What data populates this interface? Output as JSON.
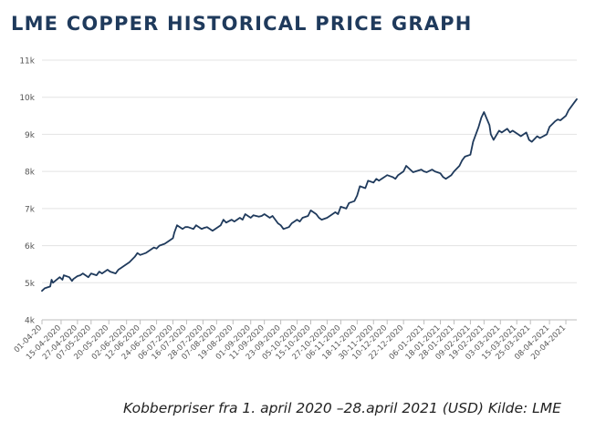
{
  "title": "LME COPPER HISTORICAL PRICE GRAPH",
  "caption": "Kobberpriser fra 1. april 2020 –28.april 2021 (USD) Kilde: LME",
  "chart_data": {
    "type": "line",
    "title": "LME COPPER HISTORICAL PRICE GRAPH",
    "xlabel": "",
    "ylabel": "",
    "ylim": [
      4000,
      11000
    ],
    "xlim": [
      "2020-04-01",
      "2021-04-28"
    ],
    "grid": true,
    "line_color": "#1f3a5c",
    "grid_color": "#e3e3e3",
    "y_ticks": [
      {
        "value": 4000,
        "label": "4k"
      },
      {
        "value": 5000,
        "label": "5k"
      },
      {
        "value": 6000,
        "label": "6k"
      },
      {
        "value": 7000,
        "label": "7k"
      },
      {
        "value": 8000,
        "label": "8k"
      },
      {
        "value": 9000,
        "label": "9k"
      },
      {
        "value": 10000,
        "label": "10k"
      },
      {
        "value": 11000,
        "label": "11k"
      }
    ],
    "x_ticks": [
      {
        "value": "2020-04-01",
        "label": "01-04-20"
      },
      {
        "value": "2020-04-15",
        "label": "15-04-2020"
      },
      {
        "value": "2020-04-27",
        "label": "27-04-2020"
      },
      {
        "value": "2020-05-07",
        "label": "07-05-2020"
      },
      {
        "value": "2020-05-20",
        "label": "20-05-2020"
      },
      {
        "value": "2020-06-02",
        "label": "02-06-2020"
      },
      {
        "value": "2020-06-12",
        "label": "12-06-2020"
      },
      {
        "value": "2020-06-24",
        "label": "24-06-2020"
      },
      {
        "value": "2020-07-06",
        "label": "06-07-2020"
      },
      {
        "value": "2020-07-16",
        "label": "16-07-2020"
      },
      {
        "value": "2020-07-28",
        "label": "28-07-2020"
      },
      {
        "value": "2020-08-07",
        "label": "07-08-2020"
      },
      {
        "value": "2020-08-19",
        "label": "19-08-2020"
      },
      {
        "value": "2020-09-01",
        "label": "01-09-2020"
      },
      {
        "value": "2020-09-11",
        "label": "11-09-2020"
      },
      {
        "value": "2020-09-23",
        "label": "23-09-2020"
      },
      {
        "value": "2020-10-05",
        "label": "05-10-2020"
      },
      {
        "value": "2020-10-15",
        "label": "15-10-2020"
      },
      {
        "value": "2020-10-27",
        "label": "27-10-2020"
      },
      {
        "value": "2020-11-06",
        "label": "06-11-2020"
      },
      {
        "value": "2020-11-18",
        "label": "18-11-2020"
      },
      {
        "value": "2020-11-30",
        "label": "30-11-2020"
      },
      {
        "value": "2020-12-10",
        "label": "10-12-2020"
      },
      {
        "value": "2020-12-22",
        "label": "22-12-2020"
      },
      {
        "value": "2021-01-06",
        "label": "06-01-2021"
      },
      {
        "value": "2021-01-18",
        "label": "18-01-2021"
      },
      {
        "value": "2021-01-28",
        "label": "28-01-2021"
      },
      {
        "value": "2021-02-09",
        "label": "09-02-2021"
      },
      {
        "value": "2021-02-19",
        "label": "19-02-2021"
      },
      {
        "value": "2021-03-03",
        "label": "03-03-2021"
      },
      {
        "value": "2021-03-15",
        "label": "15-03-2021"
      },
      {
        "value": "2021-03-25",
        "label": "25-03-2021"
      },
      {
        "value": "2021-04-08",
        "label": "08-04-2021"
      },
      {
        "value": "2021-04-20",
        "label": "20-04-2021"
      }
    ],
    "series": [
      {
        "name": "",
        "x": [
          "2020-04-01",
          "2020-04-03",
          "2020-04-07",
          "2020-04-08",
          "2020-04-09",
          "2020-04-14",
          "2020-04-16",
          "2020-04-17",
          "2020-04-21",
          "2020-04-23",
          "2020-04-24",
          "2020-04-27",
          "2020-04-29",
          "2020-05-01",
          "2020-05-05",
          "2020-05-07",
          "2020-05-11",
          "2020-05-13",
          "2020-05-15",
          "2020-05-19",
          "2020-05-21",
          "2020-05-25",
          "2020-05-27",
          "2020-05-29",
          "2020-06-02",
          "2020-06-04",
          "2020-06-08",
          "2020-06-10",
          "2020-06-12",
          "2020-06-16",
          "2020-06-18",
          "2020-06-22",
          "2020-06-24",
          "2020-06-26",
          "2020-06-30",
          "2020-07-02",
          "2020-07-06",
          "2020-07-07",
          "2020-07-09",
          "2020-07-13",
          "2020-07-15",
          "2020-07-17",
          "2020-07-21",
          "2020-07-23",
          "2020-07-27",
          "2020-07-29",
          "2020-07-31",
          "2020-08-04",
          "2020-08-06",
          "2020-08-10",
          "2020-08-12",
          "2020-08-14",
          "2020-08-18",
          "2020-08-20",
          "2020-08-24",
          "2020-08-26",
          "2020-08-28",
          "2020-09-01",
          "2020-09-03",
          "2020-09-07",
          "2020-09-09",
          "2020-09-11",
          "2020-09-15",
          "2020-09-17",
          "2020-09-21",
          "2020-09-23",
          "2020-09-25",
          "2020-09-29",
          "2020-10-01",
          "2020-10-05",
          "2020-10-07",
          "2020-10-09",
          "2020-10-13",
          "2020-10-15",
          "2020-10-19",
          "2020-10-21",
          "2020-10-23",
          "2020-10-27",
          "2020-10-29",
          "2020-11-02",
          "2020-11-04",
          "2020-11-06",
          "2020-11-10",
          "2020-11-12",
          "2020-11-16",
          "2020-11-18",
          "2020-11-20",
          "2020-11-24",
          "2020-11-26",
          "2020-11-30",
          "2020-12-02",
          "2020-12-04",
          "2020-12-08",
          "2020-12-10",
          "2020-12-14",
          "2020-12-16",
          "2020-12-18",
          "2020-12-22",
          "2020-12-24",
          "2020-12-29",
          "2021-01-04",
          "2021-01-06",
          "2021-01-08",
          "2021-01-12",
          "2021-01-14",
          "2021-01-18",
          "2021-01-20",
          "2021-01-22",
          "2021-01-26",
          "2021-01-28",
          "2021-02-01",
          "2021-02-03",
          "2021-02-05",
          "2021-02-09",
          "2021-02-11",
          "2021-02-15",
          "2021-02-17",
          "2021-02-19",
          "2021-02-23",
          "2021-02-24",
          "2021-02-26",
          "2021-03-02",
          "2021-03-04",
          "2021-03-08",
          "2021-03-10",
          "2021-03-12",
          "2021-03-16",
          "2021-03-18",
          "2021-03-22",
          "2021-03-24",
          "2021-03-26",
          "2021-03-30",
          "2021-04-01",
          "2021-04-06",
          "2021-04-08",
          "2021-04-12",
          "2021-04-14",
          "2021-04-16",
          "2021-04-20",
          "2021-04-22",
          "2021-04-26",
          "2021-04-28"
        ],
        "values": [
          4780,
          4850,
          4900,
          5080,
          5000,
          5150,
          5080,
          5200,
          5150,
          5050,
          5100,
          5180,
          5200,
          5250,
          5150,
          5250,
          5200,
          5300,
          5250,
          5350,
          5300,
          5250,
          5350,
          5400,
          5500,
          5550,
          5700,
          5800,
          5750,
          5800,
          5850,
          5950,
          5920,
          6000,
          6050,
          6100,
          6200,
          6350,
          6550,
          6450,
          6500,
          6500,
          6450,
          6550,
          6450,
          6480,
          6500,
          6400,
          6450,
          6550,
          6700,
          6620,
          6700,
          6650,
          6750,
          6700,
          6850,
          6750,
          6820,
          6780,
          6800,
          6850,
          6750,
          6800,
          6600,
          6550,
          6450,
          6500,
          6600,
          6700,
          6650,
          6750,
          6800,
          6950,
          6850,
          6750,
          6700,
          6750,
          6800,
          6900,
          6850,
          7050,
          7000,
          7150,
          7200,
          7350,
          7600,
          7550,
          7750,
          7700,
          7800,
          7750,
          7850,
          7900,
          7850,
          7800,
          7900,
          8000,
          8150,
          7980,
          8050,
          8000,
          7980,
          8050,
          8000,
          7950,
          7850,
          7800,
          7900,
          8000,
          8150,
          8300,
          8400,
          8450,
          8800,
          9200,
          9450,
          9600,
          9250,
          9000,
          8850,
          9100,
          9050,
          9150,
          9050,
          9100,
          9000,
          8950,
          9050,
          8850,
          8800,
          8950,
          8900,
          9000,
          9200,
          9350,
          9400,
          9380,
          9500,
          9650,
          9850,
          9950
        ]
      }
    ]
  }
}
